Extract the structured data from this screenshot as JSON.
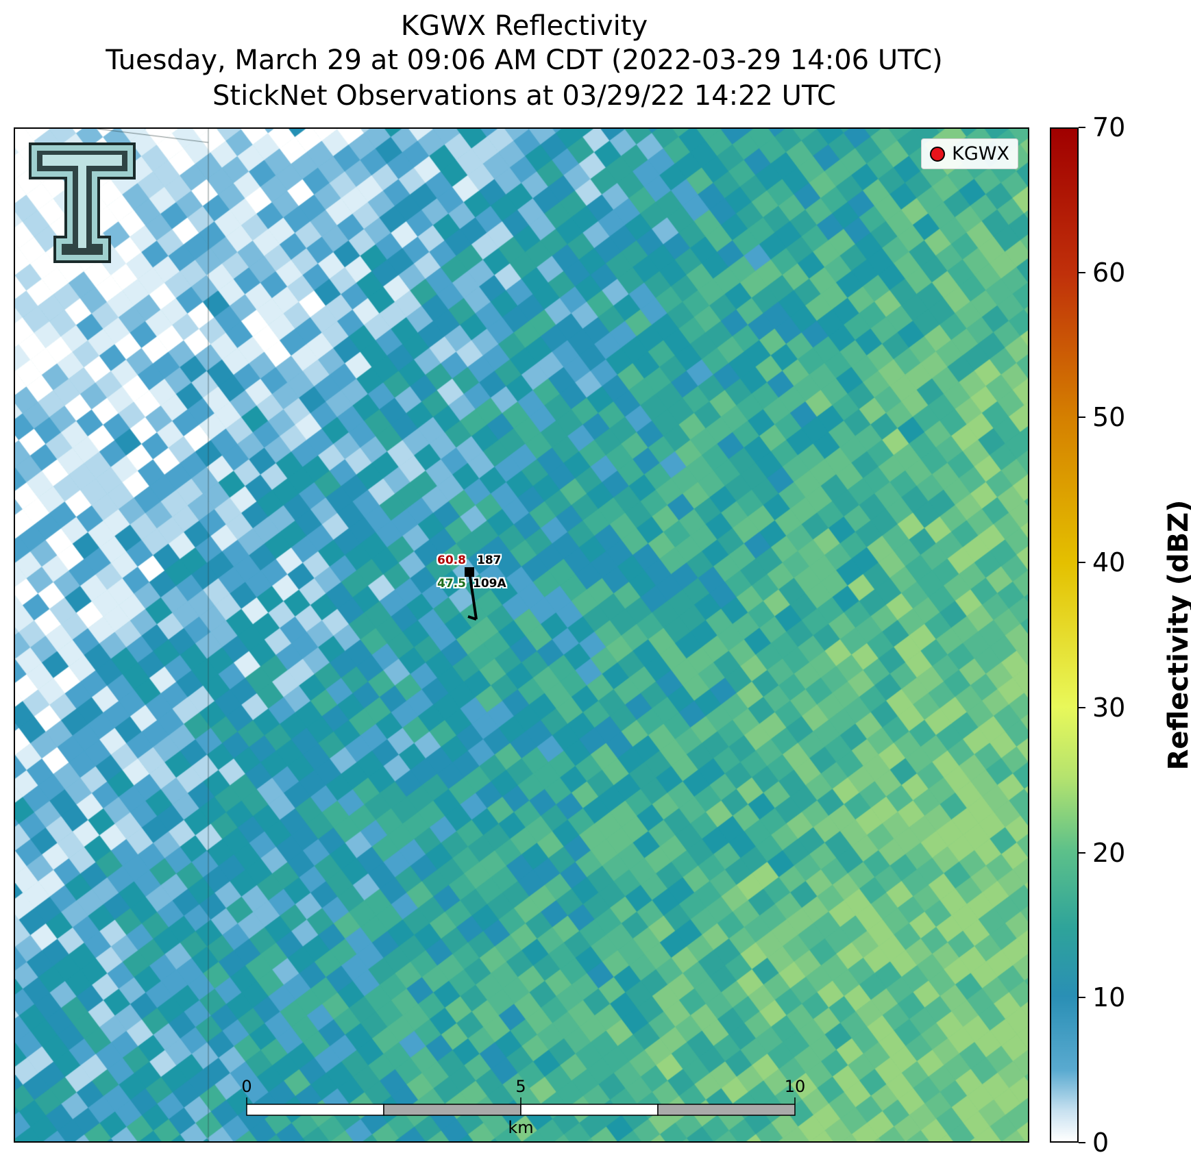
{
  "title": {
    "line1": "KGWX Reflectivity",
    "line2": "Tuesday, March 29 at 09:06 AM CDT (2022-03-29 14:06 UTC)",
    "line3": "StickNet Observations at 03/29/22 14:22 UTC"
  },
  "legend": {
    "label": "KGWX",
    "marker_color": "#e8131b"
  },
  "logo": {
    "icon": "texas-tech-double-t-logo"
  },
  "station": {
    "temperature": "60.8",
    "dewpoint": "47.5",
    "pressure": "187",
    "id": "109A",
    "temperature_color": "#b00000",
    "dewpoint_color": "#1f6f1f"
  },
  "scalebar": {
    "ticks": [
      "0",
      "5",
      "10"
    ],
    "unit": "km"
  },
  "colorbar": {
    "label": "Reflectivity (dBZ)",
    "ticks": [
      "0",
      "10",
      "20",
      "30",
      "40",
      "50",
      "60",
      "70"
    ],
    "range": [
      0,
      70
    ],
    "colors": [
      "#ffffff",
      "#2a8fb5",
      "#5cc08a",
      "#e8f85a",
      "#e4c000",
      "#d58000",
      "#c0300a",
      "#a00000"
    ]
  }
}
